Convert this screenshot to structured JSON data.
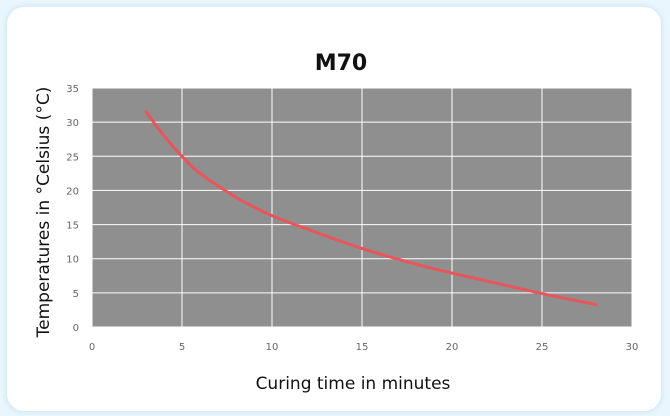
{
  "chart_data": {
    "type": "line",
    "title": "M70",
    "xlabel": "Curing time in minutes",
    "ylabel": "Temperatures in °Celsius (°C)",
    "xlim": [
      0,
      30
    ],
    "ylim": [
      0,
      35
    ],
    "x_ticks": [
      "0",
      "5",
      "10",
      "15",
      "20",
      "25",
      "30"
    ],
    "y_ticks": [
      "0",
      "5",
      "10",
      "15",
      "20",
      "25",
      "30",
      "35"
    ],
    "grid": true,
    "legend": "none",
    "series": [
      {
        "color": "#e8555a",
        "x": [
          3,
          4,
          5,
          6,
          8,
          10,
          12,
          15,
          18,
          20,
          22,
          25,
          28
        ],
        "y": [
          31.5,
          28,
          25,
          22.5,
          19,
          16.3,
          14.3,
          11.5,
          9.2,
          7.9,
          6.7,
          4.9,
          3.3
        ]
      }
    ]
  },
  "colors": {
    "plot_background": "#8f8f8f",
    "gridline": "#ffffff"
  }
}
